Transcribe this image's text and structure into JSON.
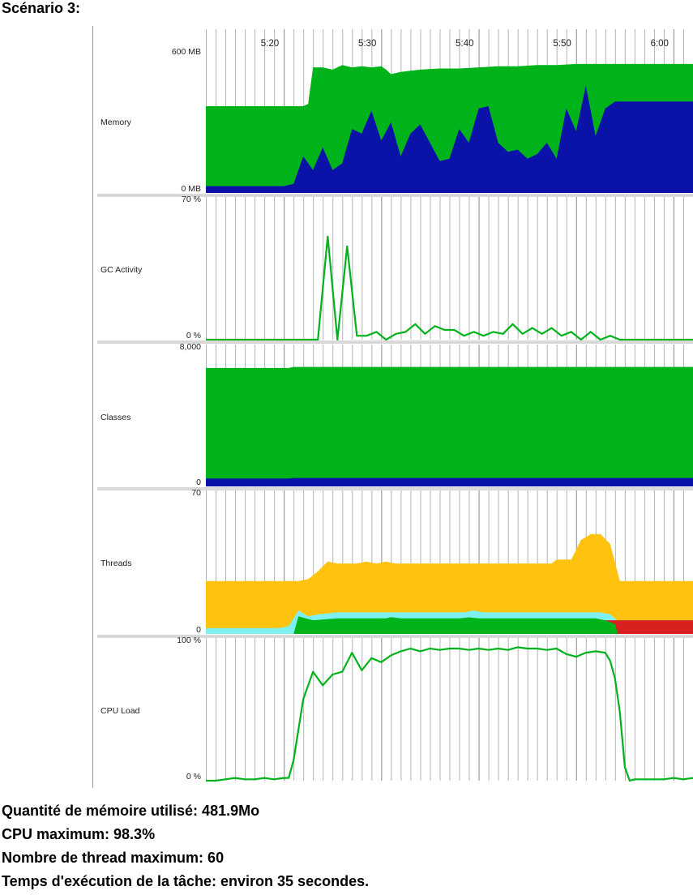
{
  "heading": "Scénario 3:",
  "colors": {
    "green": "#00b31a",
    "blue": "#0a12a8",
    "orange": "#ffc20e",
    "cyan": "#7ff0f0",
    "red": "#d92020",
    "grid": "#b4b4b4",
    "separator": "#d8d8d8"
  },
  "summary": [
    "Quantité de mémoire utilisé: 481.9Mo",
    "CPU maximum: 98.3%",
    "Nombre de thread maximum: 60",
    "Temps d'exécution de la tâche: environ 35 secondes."
  ],
  "chart_data": {
    "type": "area",
    "time_axis": {
      "range": [
        "5:12",
        "6:02"
      ],
      "tick_labels": [
        "5:20",
        "5:30",
        "5:40",
        "5:50",
        "6:00"
      ]
    },
    "panels": [
      {
        "name": "Memory",
        "max_label": "600 MB",
        "min_label": "0 MB",
        "ylim": [
          0,
          600
        ],
        "series": [
          {
            "color": "green",
            "kind": "area",
            "points": [
              [
                0,
                380
              ],
              [
                10,
                380
              ],
              [
                10.5,
                390
              ],
              [
                11,
                550
              ],
              [
                12,
                550
              ],
              [
                13,
                540
              ],
              [
                14,
                560
              ],
              [
                15,
                550
              ],
              [
                16,
                555
              ],
              [
                17,
                550
              ],
              [
                18,
                555
              ],
              [
                18.5,
                540
              ],
              [
                19,
                520
              ],
              [
                20,
                530
              ],
              [
                21,
                535
              ],
              [
                22,
                540
              ],
              [
                24,
                545
              ],
              [
                26,
                545
              ],
              [
                28,
                550
              ],
              [
                30,
                555
              ],
              [
                32,
                555
              ],
              [
                34,
                560
              ],
              [
                36,
                560
              ],
              [
                38,
                565
              ],
              [
                40,
                565
              ],
              [
                42,
                565
              ],
              [
                44,
                565
              ],
              [
                46,
                565
              ],
              [
                48,
                565
              ],
              [
                50,
                565
              ]
            ]
          },
          {
            "color": "blue",
            "kind": "area",
            "points": [
              [
                0,
                30
              ],
              [
                8,
                30
              ],
              [
                9,
                40
              ],
              [
                10,
                160
              ],
              [
                11,
                100
              ],
              [
                12,
                200
              ],
              [
                13,
                100
              ],
              [
                14,
                130
              ],
              [
                15,
                280
              ],
              [
                16,
                260
              ],
              [
                17,
                360
              ],
              [
                18,
                230
              ],
              [
                19,
                310
              ],
              [
                20,
                160
              ],
              [
                21,
                260
              ],
              [
                22,
                300
              ],
              [
                23,
                220
              ],
              [
                24,
                140
              ],
              [
                25,
                150
              ],
              [
                26,
                280
              ],
              [
                27,
                220
              ],
              [
                28,
                370
              ],
              [
                29,
                380
              ],
              [
                30,
                220
              ],
              [
                31,
                180
              ],
              [
                32,
                190
              ],
              [
                33,
                150
              ],
              [
                34,
                170
              ],
              [
                35,
                220
              ],
              [
                36,
                150
              ],
              [
                37,
                370
              ],
              [
                38,
                270
              ],
              [
                39,
                470
              ],
              [
                40,
                250
              ],
              [
                41,
                370
              ],
              [
                42,
                400
              ],
              [
                43,
                400
              ],
              [
                50,
                400
              ]
            ]
          }
        ]
      },
      {
        "name": "GC Activity",
        "max_label": "70 %",
        "min_label": "0 %",
        "ylim": [
          0,
          70
        ],
        "series": [
          {
            "color": "green",
            "kind": "line",
            "points": [
              [
                0,
                0
              ],
              [
                10,
                0
              ],
              [
                11.5,
                0
              ],
              [
                12.5,
                53
              ],
              [
                13.5,
                0
              ],
              [
                14.5,
                48
              ],
              [
                15.5,
                2
              ],
              [
                16.5,
                2
              ],
              [
                17.5,
                4
              ],
              [
                18.5,
                0
              ],
              [
                19.5,
                3
              ],
              [
                20.5,
                4
              ],
              [
                21.5,
                8
              ],
              [
                22.5,
                3
              ],
              [
                23.5,
                7
              ],
              [
                24.5,
                5
              ],
              [
                25.5,
                5
              ],
              [
                26.5,
                2
              ],
              [
                27.5,
                4
              ],
              [
                28.5,
                2
              ],
              [
                29.5,
                4
              ],
              [
                30.5,
                3
              ],
              [
                31.5,
                8
              ],
              [
                32.5,
                3
              ],
              [
                33.5,
                6
              ],
              [
                34.5,
                3
              ],
              [
                35.5,
                6
              ],
              [
                36.5,
                2
              ],
              [
                37.5,
                4
              ],
              [
                38.5,
                0
              ],
              [
                39.5,
                4
              ],
              [
                40.5,
                0
              ],
              [
                41.5,
                2
              ],
              [
                42.5,
                0
              ],
              [
                50,
                0
              ]
            ]
          }
        ]
      },
      {
        "name": "Classes",
        "max_label": "8,000",
        "min_label": "0",
        "ylim": [
          0,
          8000
        ],
        "series": [
          {
            "color": "green",
            "kind": "area",
            "points": [
              [
                0,
                7000
              ],
              [
                8.5,
                7000
              ],
              [
                9,
                7060
              ],
              [
                50,
                7060
              ]
            ]
          },
          {
            "color": "blue",
            "kind": "area",
            "points": [
              [
                0,
                470
              ],
              [
                8.5,
                470
              ],
              [
                9,
                500
              ],
              [
                50,
                500
              ]
            ]
          }
        ]
      },
      {
        "name": "Threads",
        "max_label": "70",
        "min_label": "0",
        "ylim": [
          0,
          70
        ],
        "series": [
          {
            "color": "orange",
            "kind": "area",
            "points": [
              [
                0,
                27
              ],
              [
                9.5,
                27
              ],
              [
                10.5,
                28
              ],
              [
                11.5,
                32
              ],
              [
                12.5,
                37
              ],
              [
                13.5,
                36
              ],
              [
                15.5,
                36
              ],
              [
                16.5,
                37
              ],
              [
                17.5,
                36
              ],
              [
                18.5,
                37
              ],
              [
                19.5,
                36
              ],
              [
                35,
                36
              ],
              [
                35.5,
                36
              ],
              [
                36,
                38
              ],
              [
                37.5,
                38
              ],
              [
                38.5,
                48
              ],
              [
                39.5,
                51
              ],
              [
                40.5,
                51
              ],
              [
                41.5,
                46
              ],
              [
                42.5,
                27
              ],
              [
                50,
                27
              ]
            ]
          },
          {
            "color": "cyan",
            "kind": "area",
            "points": [
              [
                0,
                3
              ],
              [
                7.5,
                3
              ],
              [
                8.5,
                4
              ],
              [
                9.5,
                12
              ],
              [
                10.5,
                9
              ],
              [
                11.5,
                10
              ],
              [
                13.5,
                11
              ],
              [
                26.5,
                11
              ],
              [
                27.5,
                12
              ],
              [
                28.5,
                11
              ],
              [
                40.5,
                11
              ],
              [
                41.5,
                10
              ],
              [
                42,
                8
              ],
              [
                42.5,
                3
              ],
              [
                50,
                3
              ]
            ]
          },
          {
            "color": "red",
            "kind": "area",
            "points": [
              [
                11.5,
                0
              ],
              [
                11.6,
                7
              ],
              [
                13.5,
                7
              ],
              [
                14,
                6
              ],
              [
                14.5,
                7.5
              ],
              [
                15,
                6.8
              ],
              [
                18.5,
                7
              ],
              [
                18.8,
                7.6
              ],
              [
                19.2,
                7
              ],
              [
                50,
                7
              ],
              [
                50,
                0
              ]
            ]
          },
          {
            "color": "green",
            "kind": "area",
            "points": [
              [
                9,
                0
              ],
              [
                9.5,
                9
              ],
              [
                11,
                7
              ],
              [
                13.5,
                8
              ],
              [
                17.5,
                8
              ],
              [
                18.5,
                8
              ],
              [
                19,
                8.6
              ],
              [
                20,
                8
              ],
              [
                26,
                8
              ],
              [
                27,
                8.5
              ],
              [
                28,
                8
              ],
              [
                40,
                8
              ],
              [
                41,
                7
              ],
              [
                42,
                5
              ],
              [
                42.3,
                0
              ],
              [
                50,
                0
              ]
            ]
          }
        ]
      },
      {
        "name": "CPU Load",
        "max_label": "100 %",
        "min_label": "0 %",
        "ylim": [
          0,
          100
        ],
        "series": [
          {
            "color": "green",
            "kind": "line",
            "points": [
              [
                0,
                0
              ],
              [
                1,
                0
              ],
              [
                2,
                1
              ],
              [
                3,
                2
              ],
              [
                4,
                1
              ],
              [
                5,
                1
              ],
              [
                6,
                2
              ],
              [
                7,
                1
              ],
              [
                8,
                2
              ],
              [
                8.5,
                2
              ],
              [
                9,
                15
              ],
              [
                10,
                60
              ],
              [
                11,
                80
              ],
              [
                12,
                70
              ],
              [
                13,
                78
              ],
              [
                14,
                80
              ],
              [
                15,
                94
              ],
              [
                16,
                81
              ],
              [
                17,
                90
              ],
              [
                18,
                87
              ],
              [
                19,
                92
              ],
              [
                20,
                95
              ],
              [
                21,
                97
              ],
              [
                22,
                95
              ],
              [
                23,
                97
              ],
              [
                24,
                96
              ],
              [
                25,
                97
              ],
              [
                26,
                97
              ],
              [
                27,
                96
              ],
              [
                28,
                97
              ],
              [
                29,
                96
              ],
              [
                30,
                97
              ],
              [
                31,
                96
              ],
              [
                32,
                98
              ],
              [
                33,
                97
              ],
              [
                34,
                97
              ],
              [
                35,
                96
              ],
              [
                36,
                97
              ],
              [
                37,
                93
              ],
              [
                38,
                91
              ],
              [
                39,
                94
              ],
              [
                40,
                95
              ],
              [
                41,
                94
              ],
              [
                41.5,
                88
              ],
              [
                42,
                75
              ],
              [
                42.5,
                50
              ],
              [
                43,
                10
              ],
              [
                43.5,
                0
              ],
              [
                44,
                1
              ],
              [
                45,
                1
              ],
              [
                46,
                1
              ],
              [
                47,
                1
              ],
              [
                48,
                2
              ],
              [
                49,
                1
              ],
              [
                50,
                2
              ]
            ]
          }
        ]
      }
    ]
  }
}
